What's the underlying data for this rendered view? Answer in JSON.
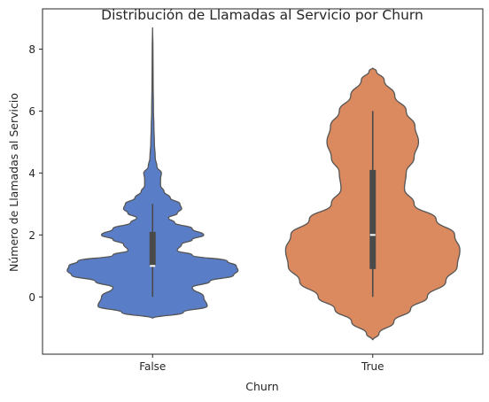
{
  "chart_data": {
    "type": "violin",
    "title": "Distribución de Llamadas al Servicio por Churn",
    "xlabel": "Churn",
    "ylabel": "Número de Llamadas al Servicio",
    "categories": [
      "False",
      "True"
    ],
    "ylim": [
      -1.85,
      9.3
    ],
    "yticks": [
      0,
      2,
      4,
      6,
      8
    ],
    "grid": false,
    "colors": {
      "False": "#5a7dc8",
      "True": "#db8a5f",
      "outline": "#555555",
      "box": "#4a4a4a",
      "median": "#ffffff"
    },
    "box": {
      "False": {
        "q1": 1.0,
        "median": 1.0,
        "q3": 2.1,
        "whisker_low": 0.0,
        "whisker_high": 3.0
      },
      "True": {
        "q1": 0.9,
        "median": 2.0,
        "q3": 4.1,
        "whisker_low": 0.0,
        "whisker_high": 6.0
      }
    },
    "density": {
      "False": {
        "y": [
          -0.7,
          -0.5,
          -0.3,
          0.0,
          0.3,
          0.5,
          0.7,
          0.85,
          1.0,
          1.15,
          1.35,
          1.5,
          1.7,
          1.85,
          2.0,
          2.2,
          2.4,
          2.55,
          2.7,
          2.85,
          3.0,
          3.2,
          3.4,
          3.6,
          3.8,
          4.0,
          4.2,
          4.5,
          5.0,
          5.5,
          6.0,
          7.0,
          8.0,
          8.7
        ],
        "w": [
          0.0,
          0.35,
          0.62,
          0.58,
          0.45,
          0.65,
          0.92,
          0.97,
          0.95,
          0.85,
          0.45,
          0.28,
          0.33,
          0.45,
          0.58,
          0.45,
          0.25,
          0.18,
          0.28,
          0.33,
          0.31,
          0.2,
          0.13,
          0.09,
          0.09,
          0.1,
          0.05,
          0.03,
          0.02,
          0.015,
          0.01,
          0.006,
          0.004,
          0.0
        ]
      },
      "True": {
        "y": [
          -1.4,
          -1.2,
          -0.8,
          -0.4,
          0.0,
          0.5,
          1.0,
          1.5,
          2.0,
          2.5,
          3.0,
          3.5,
          4.0,
          4.5,
          5.0,
          5.5,
          6.0,
          6.5,
          7.0,
          7.3,
          7.4
        ],
        "w": [
          0.0,
          0.07,
          0.24,
          0.43,
          0.62,
          0.83,
          0.96,
          0.99,
          0.93,
          0.72,
          0.47,
          0.36,
          0.38,
          0.47,
          0.52,
          0.48,
          0.38,
          0.25,
          0.13,
          0.04,
          0.0
        ]
      }
    }
  }
}
